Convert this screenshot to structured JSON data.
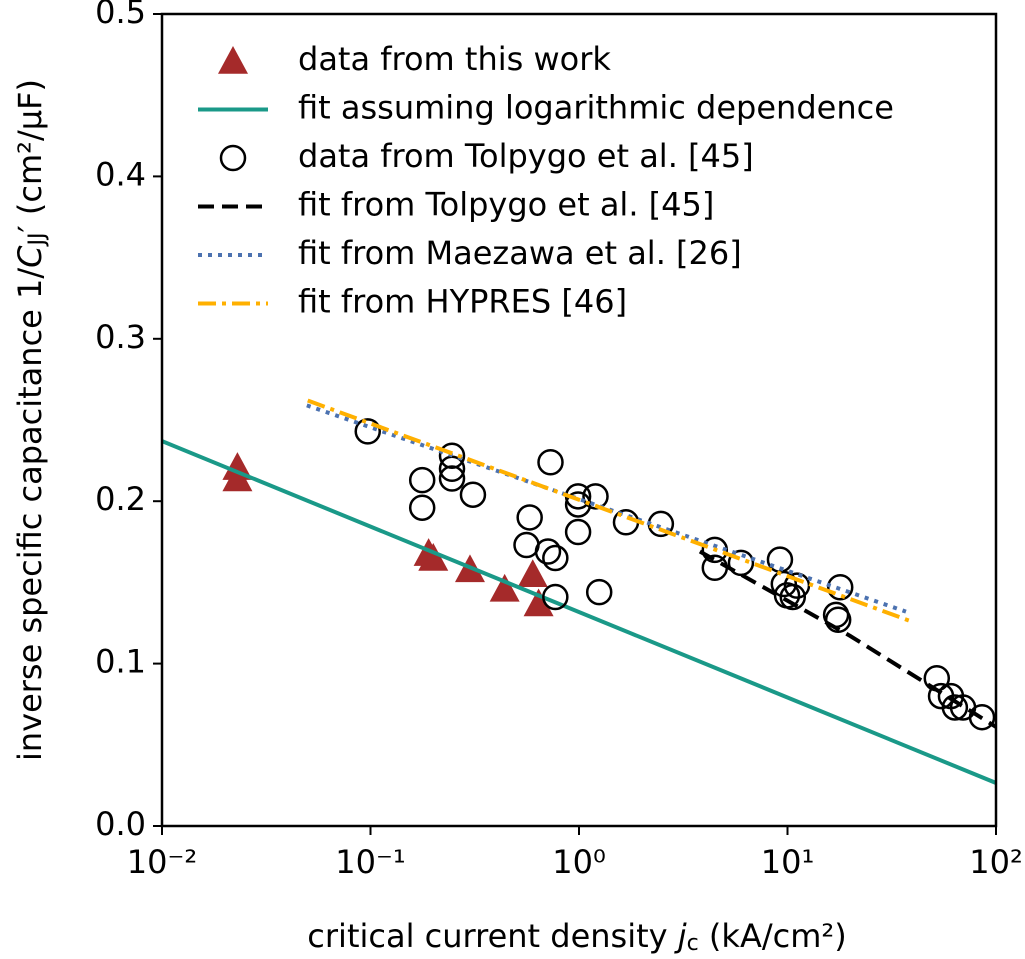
{
  "chart_data": {
    "type": "line",
    "xlabel": {
      "text": "critical current density ",
      "symbol": "j",
      "subscript": "c",
      "suffix": " (kA/cm²)"
    },
    "ylabel": {
      "text": "inverse specific capacitance 1/",
      "symbol": "C",
      "subscript": "JJ",
      "suffix": "′ (cm²/μF)"
    },
    "xscale": "log",
    "xlim": [
      0.01,
      100
    ],
    "ylim": [
      0,
      0.5
    ],
    "xticks": [
      {
        "value": 0.01,
        "label": "10⁻²"
      },
      {
        "value": 0.1,
        "label": "10⁻¹"
      },
      {
        "value": 1,
        "label": "10⁰"
      },
      {
        "value": 10,
        "label": "10¹"
      },
      {
        "value": 100,
        "label": "10²"
      }
    ],
    "yticks": [
      {
        "value": 0,
        "label": "0.0"
      },
      0.1,
      0.2,
      0.3,
      0.4,
      0.5
    ],
    "legend": "upper left",
    "series": [
      {
        "name": "data from this work",
        "color": "#a52a2a",
        "style": "triangle",
        "x": [
          0.023,
          0.023,
          0.19,
          0.2,
          0.3,
          0.44,
          0.6,
          0.64
        ],
        "values": [
          0.221,
          0.214,
          0.168,
          0.165,
          0.158,
          0.146,
          0.155,
          0.137
        ]
      },
      {
        "name": "fit assuming logarithmic dependence",
        "color": "#1a9988",
        "style": "solid",
        "x": [
          0.01,
          100
        ],
        "values": [
          0.237,
          0.0265
        ]
      },
      {
        "name": "data from Tolpygo et al. [45]",
        "color": "#000000",
        "style": "circle",
        "x": [
          0.097,
          0.246,
          0.246,
          0.246,
          0.177,
          0.177,
          0.31,
          0.58,
          0.56,
          0.73,
          0.71,
          0.77,
          0.77,
          0.99,
          0.99,
          0.99,
          1.2,
          1.25,
          1.68,
          2.47,
          4.48,
          4.48,
          5.98,
          9.2,
          9.6,
          9.95,
          10.6,
          11.1,
          17.9,
          17.1,
          17.5,
          52,
          54.5,
          60.8,
          63.5,
          69.5,
          85.7
        ],
        "values": [
          0.243,
          0.228,
          0.22,
          0.214,
          0.213,
          0.196,
          0.204,
          0.19,
          0.173,
          0.224,
          0.169,
          0.165,
          0.141,
          0.203,
          0.198,
          0.181,
          0.203,
          0.144,
          0.187,
          0.186,
          0.17,
          0.159,
          0.162,
          0.164,
          0.149,
          0.142,
          0.141,
          0.148,
          0.147,
          0.13,
          0.127,
          0.091,
          0.08,
          0.08,
          0.073,
          0.073,
          0.067
        ]
      },
      {
        "name": "fit from Tolpygo et al. [45]",
        "color": "#000000",
        "style": "dashed",
        "x": [
          3.8,
          20,
          100
        ],
        "values": [
          0.169,
          0.117,
          0.061
        ]
      },
      {
        "name": "fit from Maezawa et al. [26]",
        "color": "#4c72b0",
        "style": "dotted",
        "x": [
          0.0495,
          37
        ],
        "values": [
          0.259,
          0.132
        ]
      },
      {
        "name": "fit from HYPRES [46]",
        "color": "#ffb000",
        "style": "dashdot",
        "x": [
          0.05,
          40
        ],
        "values": [
          0.262,
          0.1256
        ]
      }
    ]
  }
}
